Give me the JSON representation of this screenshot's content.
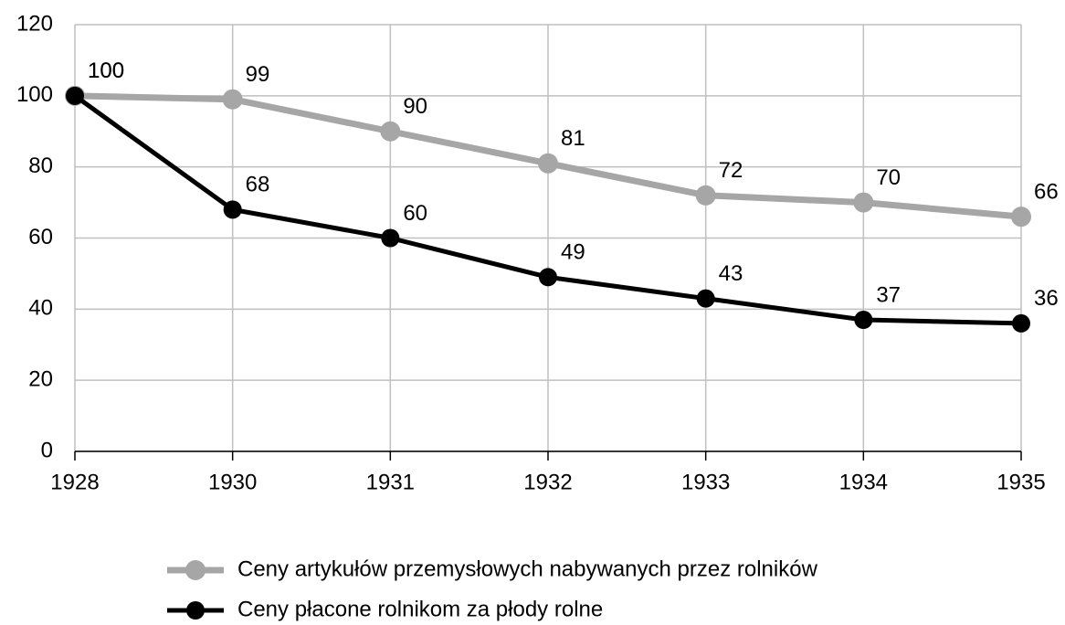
{
  "chart_data": {
    "type": "line",
    "categories": [
      "1928",
      "1930",
      "1931",
      "1932",
      "1933",
      "1934",
      "1935"
    ],
    "series": [
      {
        "name": "Ceny artykułów przemysłowych nabywanych przez rolników",
        "color": "#a6a6a6",
        "values": [
          100,
          99,
          90,
          81,
          72,
          70,
          66
        ]
      },
      {
        "name": "Ceny płacone rolnikom za płody rolne",
        "color": "#000000",
        "values": [
          100,
          68,
          60,
          49,
          43,
          37,
          36
        ]
      }
    ],
    "ylim": [
      0,
      120
    ],
    "yticks": [
      0,
      20,
      40,
      60,
      80,
      100,
      120
    ],
    "grid": true,
    "legend": "bottom"
  }
}
